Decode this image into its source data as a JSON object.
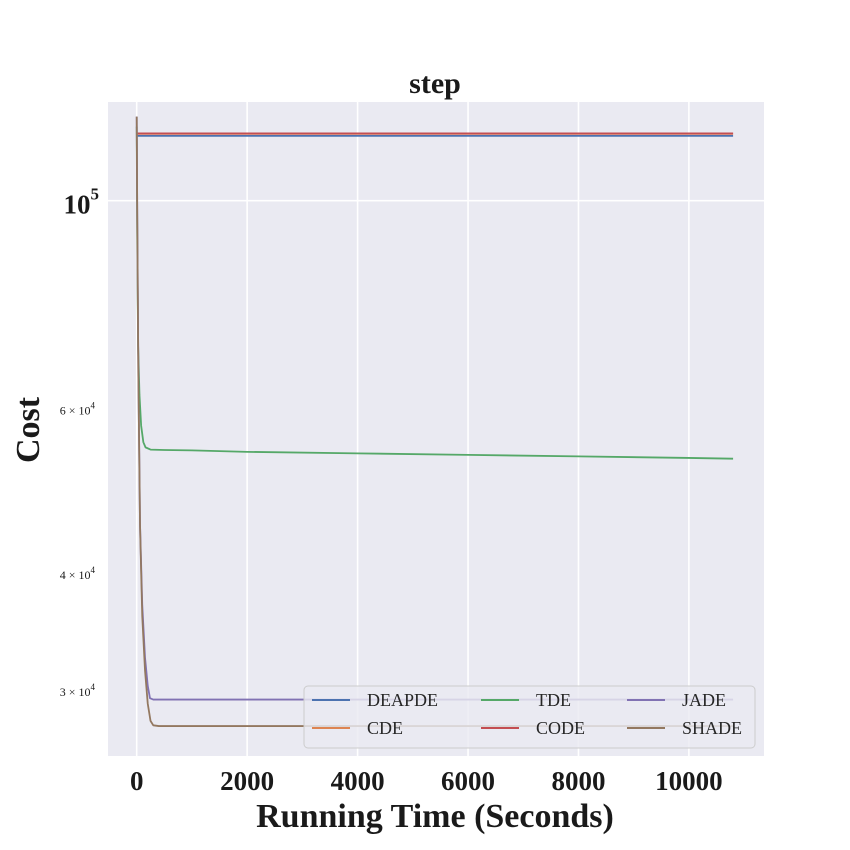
{
  "chart_data": {
    "type": "line",
    "title": "step",
    "xlabel": "Running Time (Seconds)",
    "ylabel": "Cost",
    "xlim": [
      -520,
      11360
    ],
    "ylim": [
      25500,
      127500
    ],
    "yscale": "log",
    "grid": true,
    "legend_position": "bottom-right",
    "legend_columns": 3,
    "background_color": "#eaeaf2",
    "grid_color": "#ffffff",
    "x_ticks": [
      {
        "value": 0,
        "label": "0"
      },
      {
        "value": 2000,
        "label": "2000"
      },
      {
        "value": 4000,
        "label": "4000"
      },
      {
        "value": 6000,
        "label": "6000"
      },
      {
        "value": 8000,
        "label": "8000"
      },
      {
        "value": 10000,
        "label": "10000"
      }
    ],
    "y_major_ticks": [
      {
        "value": 100000,
        "base": "10",
        "exp": "5"
      }
    ],
    "y_minor_ticks": [
      {
        "value": 60000,
        "mant": "6",
        "times": "×",
        "base": "10",
        "exp": "4"
      },
      {
        "value": 40000,
        "mant": "4",
        "times": "×",
        "base": "10",
        "exp": "4"
      },
      {
        "value": 30000,
        "mant": "3",
        "times": "×",
        "base": "10",
        "exp": "4"
      }
    ],
    "series": [
      {
        "name": "DEAPDE",
        "color": "#4c72b0",
        "x": [
          0,
          10800
        ],
        "y": [
          117300,
          117300
        ]
      },
      {
        "name": "CDE",
        "color": "#dd8452",
        "x": [
          0,
          10800
        ],
        "y": [
          117900,
          117900
        ]
      },
      {
        "name": "TDE",
        "color": "#55a868",
        "x": [
          0,
          10,
          25,
          50,
          80,
          120,
          160,
          250,
          500,
          1000,
          2000,
          4000,
          6000,
          8000,
          10000,
          10800
        ],
        "y": [
          120000,
          90000,
          70000,
          62000,
          57500,
          55200,
          54500,
          54200,
          54150,
          54100,
          53900,
          53700,
          53500,
          53300,
          53100,
          53000
        ]
      },
      {
        "name": "CODE",
        "color": "#c44e52",
        "x": [
          0,
          10800
        ],
        "y": [
          118000,
          118000
        ]
      },
      {
        "name": "JADE",
        "color": "#8172b3",
        "x": [
          0,
          10,
          30,
          60,
          100,
          150,
          200,
          240,
          300,
          1000,
          5000,
          10800
        ],
        "y": [
          123000,
          95000,
          65000,
          45000,
          37000,
          32500,
          30300,
          29400,
          29300,
          29300,
          29300,
          29300
        ]
      },
      {
        "name": "SHADE",
        "color": "#937860",
        "x": [
          0,
          10,
          30,
          60,
          100,
          150,
          200,
          250,
          300,
          400,
          1000,
          5000,
          10800
        ],
        "y": [
          123000,
          95000,
          65000,
          45000,
          36000,
          31500,
          29000,
          27800,
          27500,
          27450,
          27450,
          27450,
          27450
        ]
      }
    ]
  }
}
